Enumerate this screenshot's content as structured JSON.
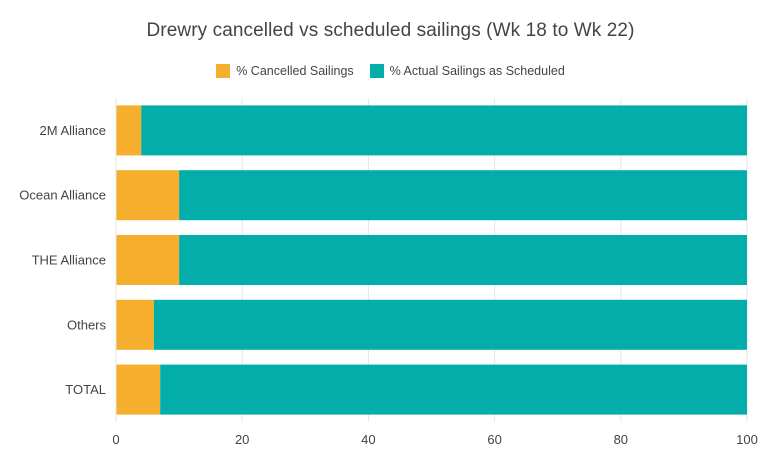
{
  "chart_data": {
    "type": "bar",
    "orientation": "horizontal",
    "stacked": true,
    "title": "Drewry cancelled vs scheduled sailings (Wk 18 to Wk 22)",
    "categories": [
      "2M Alliance",
      "Ocean Alliance",
      "THE Alliance",
      "Others",
      "TOTAL"
    ],
    "series": [
      {
        "name": "% Cancelled Sailings",
        "color": "#F6AE2D",
        "values": [
          4,
          10,
          10,
          6,
          7
        ]
      },
      {
        "name": "% Actual Sailings as Scheduled",
        "color": "#03ADA9",
        "values": [
          96,
          90,
          90,
          94,
          93
        ]
      }
    ],
    "xlim": [
      0,
      100
    ],
    "x_ticks": [
      0,
      20,
      40,
      60,
      80,
      100
    ],
    "grid": true,
    "legend_position": "top-center"
  }
}
